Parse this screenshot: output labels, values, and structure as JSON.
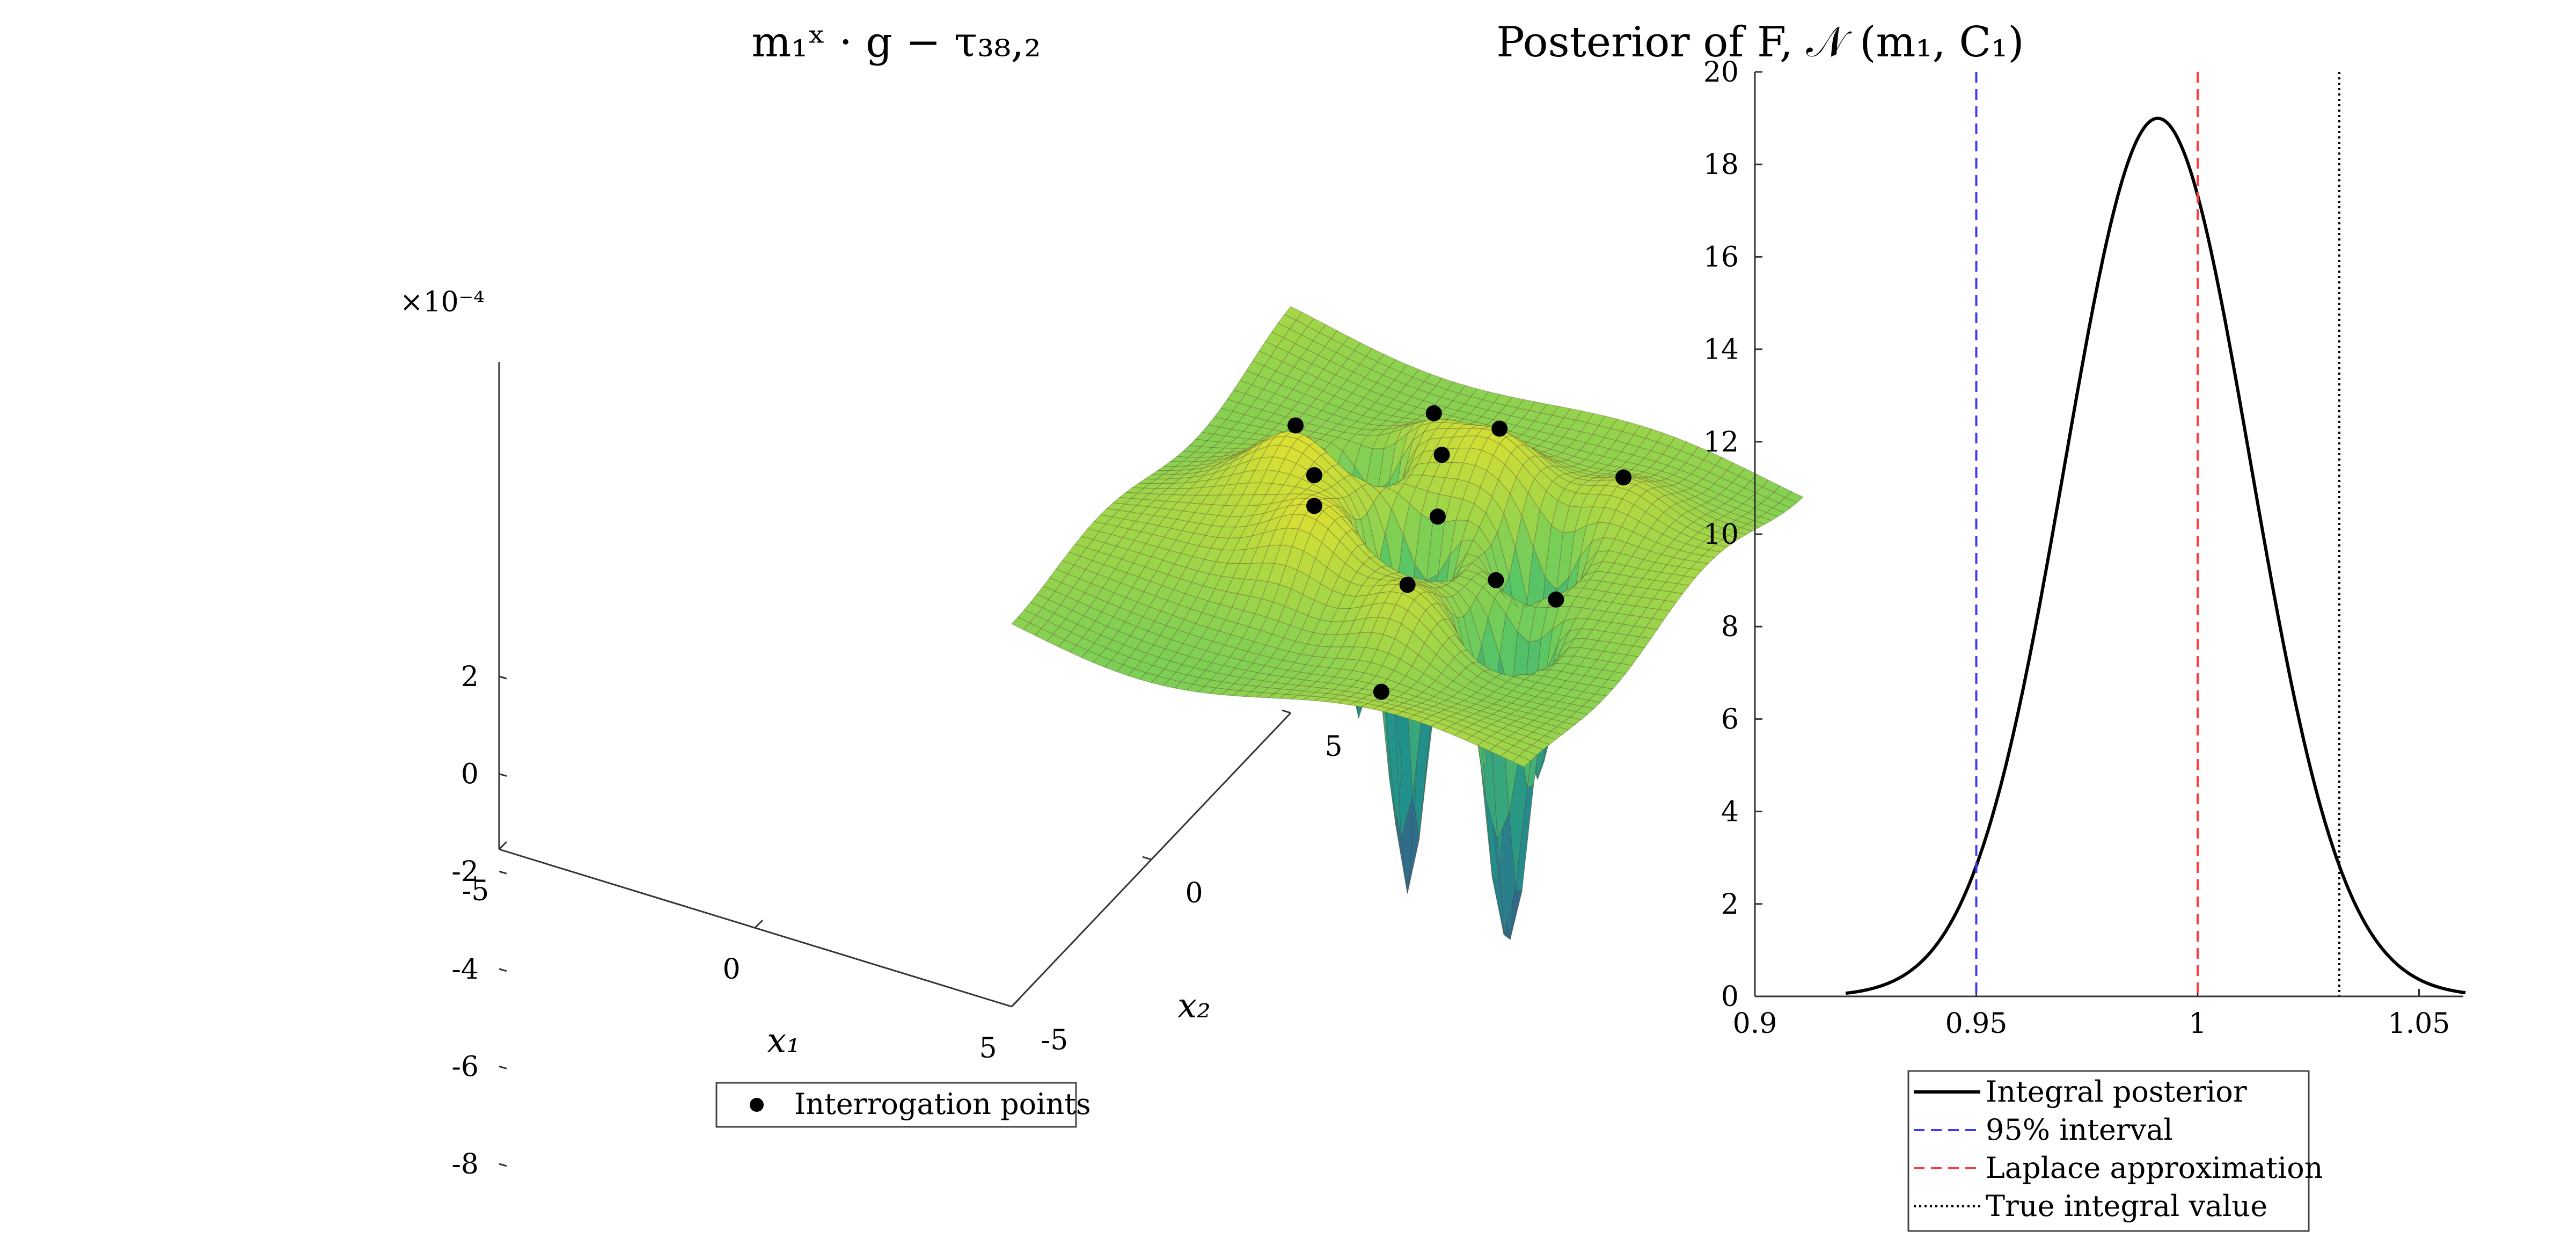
{
  "chart_data": [
    {
      "type": "surface3d",
      "title": "m₁ˣ · g − τ₃₈,₂",
      "z_multiplier_label": "×10⁻⁴",
      "x_label": "x₁",
      "y_label": "x₂",
      "x_ticks": [
        "-5",
        "0",
        "5"
      ],
      "y_ticks": [
        "-5",
        "0",
        "5"
      ],
      "z_ticks": [
        "2",
        "0",
        "-2",
        "-4",
        "-6",
        "-8"
      ],
      "xlim": [
        -5,
        5
      ],
      "ylim": [
        -5,
        5
      ],
      "zlim": [
        -8,
        2
      ],
      "colormap": [
        "#440154",
        "#3b528b",
        "#21918c",
        "#5ec962",
        "#fde725"
      ],
      "wells": [
        {
          "x": -2.5,
          "y": -1.0,
          "depth": -6.6
        },
        {
          "x": 0.0,
          "y": 0.0,
          "depth": -7.4
        },
        {
          "x": -2.0,
          "y": 1.0,
          "depth": -4.8
        },
        {
          "x": 1.8,
          "y": 1.6,
          "depth": -5.5
        }
      ],
      "points_series": "Interrogation points",
      "points_color": "#000000",
      "legend": "Interrogation points"
    },
    {
      "type": "line",
      "title": "Posterior of F, 𝒩 (m₁, C₁)",
      "xlim": [
        0.9,
        1.06
      ],
      "ylim": [
        0,
        20
      ],
      "x_ticks": [
        0.9,
        0.95,
        1,
        1.05
      ],
      "y_ticks": [
        0,
        2,
        4,
        6,
        8,
        10,
        12,
        14,
        16,
        18,
        20
      ],
      "x_tick_labels": [
        "0.9",
        "0.95",
        "1",
        "1.05"
      ],
      "y_tick_labels": [
        "0",
        "2",
        "4",
        "6",
        "8",
        "10",
        "12",
        "14",
        "16",
        "18",
        "20"
      ],
      "series": [
        {
          "name": "Integral posterior",
          "type": "gaussian",
          "mean": 0.991,
          "sd": 0.021,
          "x_range": [
            0.9205,
            1.0605
          ],
          "color": "#000000",
          "style": "solid"
        },
        {
          "name": "95% interval",
          "type": "vline",
          "x": 0.95,
          "color": "#3a3aff",
          "style": "dashed"
        },
        {
          "name": "Laplace approximation",
          "type": "vline",
          "x": 1.0,
          "color": "#ff3b3b",
          "style": "dashed"
        },
        {
          "name": "True integral value",
          "type": "vline",
          "x": 1.032,
          "color": "#000000",
          "style": "dotted"
        }
      ],
      "legend_position": "below"
    }
  ]
}
